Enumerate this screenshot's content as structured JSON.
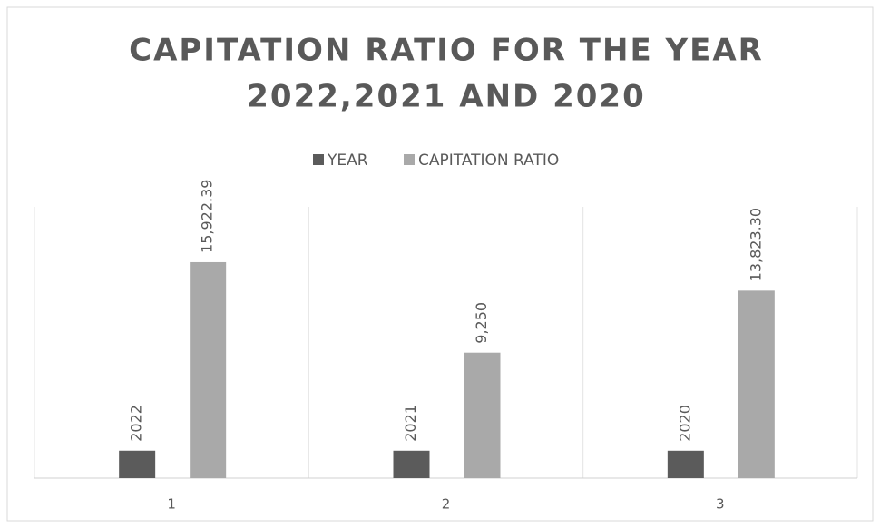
{
  "chart_data": {
    "type": "bar",
    "title": [
      "CAPITATION RATIO FOR THE YEAR",
      "2022,2021 AND 2020"
    ],
    "categories": [
      "1",
      "2",
      "3"
    ],
    "series": [
      {
        "name": "YEAR",
        "color": "#5b5b5b",
        "values": [
          2022,
          2021,
          2020
        ]
      },
      {
        "name": "CAPITATION RATIO",
        "color": "#a9a9a9",
        "values": [
          15922.39,
          9250,
          13823.3
        ],
        "value_labels": [
          "15,922.39",
          "9,250",
          "13,823.30"
        ]
      }
    ],
    "ylim": [
      0,
      20000
    ],
    "legend": "top"
  }
}
